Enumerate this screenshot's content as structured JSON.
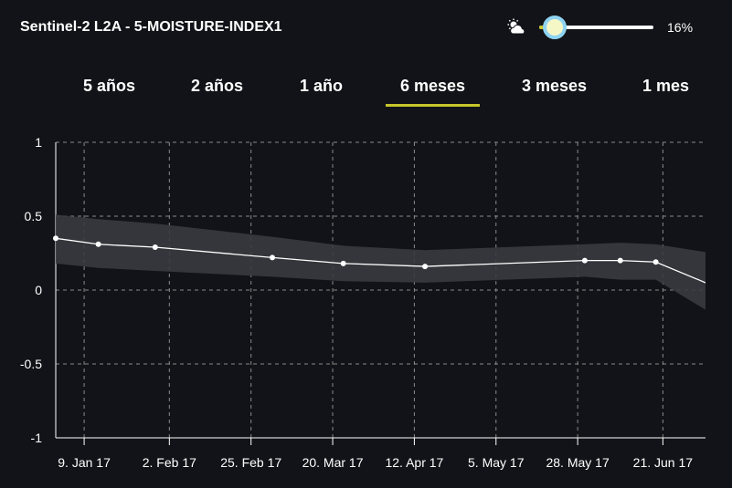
{
  "header": {
    "title": "Sentinel-2 L2A - 5-MOISTURE-INDEX1",
    "cloud_icon": "cloud-sun-icon",
    "cloud_cover_value": "16%",
    "cloud_cover_level": 0.16
  },
  "tabs": [
    {
      "label": "5 años"
    },
    {
      "label": "2 años"
    },
    {
      "label": "1 año"
    },
    {
      "label": "6 meses",
      "active": true
    },
    {
      "label": "3 meses"
    },
    {
      "label": "1 mes"
    }
  ],
  "colors": {
    "background": "#121318",
    "accent": "#c6c62a",
    "line": "#ffffff",
    "band": "#3a3b3f",
    "grid": "#8a8a8a"
  },
  "chart_data": {
    "type": "line",
    "ylim": [
      -1,
      1
    ],
    "yticks": [
      "1",
      "0.5",
      "0",
      "-0.5",
      "-1"
    ],
    "ytick_values": [
      1,
      0.5,
      0,
      -0.5,
      -1
    ],
    "xlim": [
      "2017-01-01",
      "2017-07-03"
    ],
    "xticks": [
      "9. Jan 17",
      "2. Feb 17",
      "25. Feb 17",
      "20. Mar 17",
      "12. Apr 17",
      "5. May 17",
      "28. May 17",
      "21. Jun 17"
    ],
    "xtick_dates": [
      "2017-01-09",
      "2017-02-02",
      "2017-02-25",
      "2017-03-20",
      "2017-04-12",
      "2017-05-05",
      "2017-05-28",
      "2017-06-21"
    ],
    "grid": true,
    "series": [
      {
        "x": [
          "2017-01-01",
          "2017-01-13",
          "2017-01-29",
          "2017-03-03",
          "2017-03-23",
          "2017-04-15",
          "2017-05-30",
          "2017-06-09",
          "2017-06-19",
          "2017-07-18"
        ],
        "values": [
          0.35,
          0.31,
          0.29,
          0.22,
          0.18,
          0.16,
          0.2,
          0.2,
          0.19,
          -0.1
        ],
        "upper": [
          0.51,
          0.48,
          0.45,
          0.36,
          0.3,
          0.27,
          0.31,
          0.32,
          0.31,
          0.2
        ],
        "lower": [
          0.18,
          0.15,
          0.13,
          0.09,
          0.06,
          0.05,
          0.09,
          0.07,
          0.07,
          -0.35
        ]
      }
    ]
  }
}
